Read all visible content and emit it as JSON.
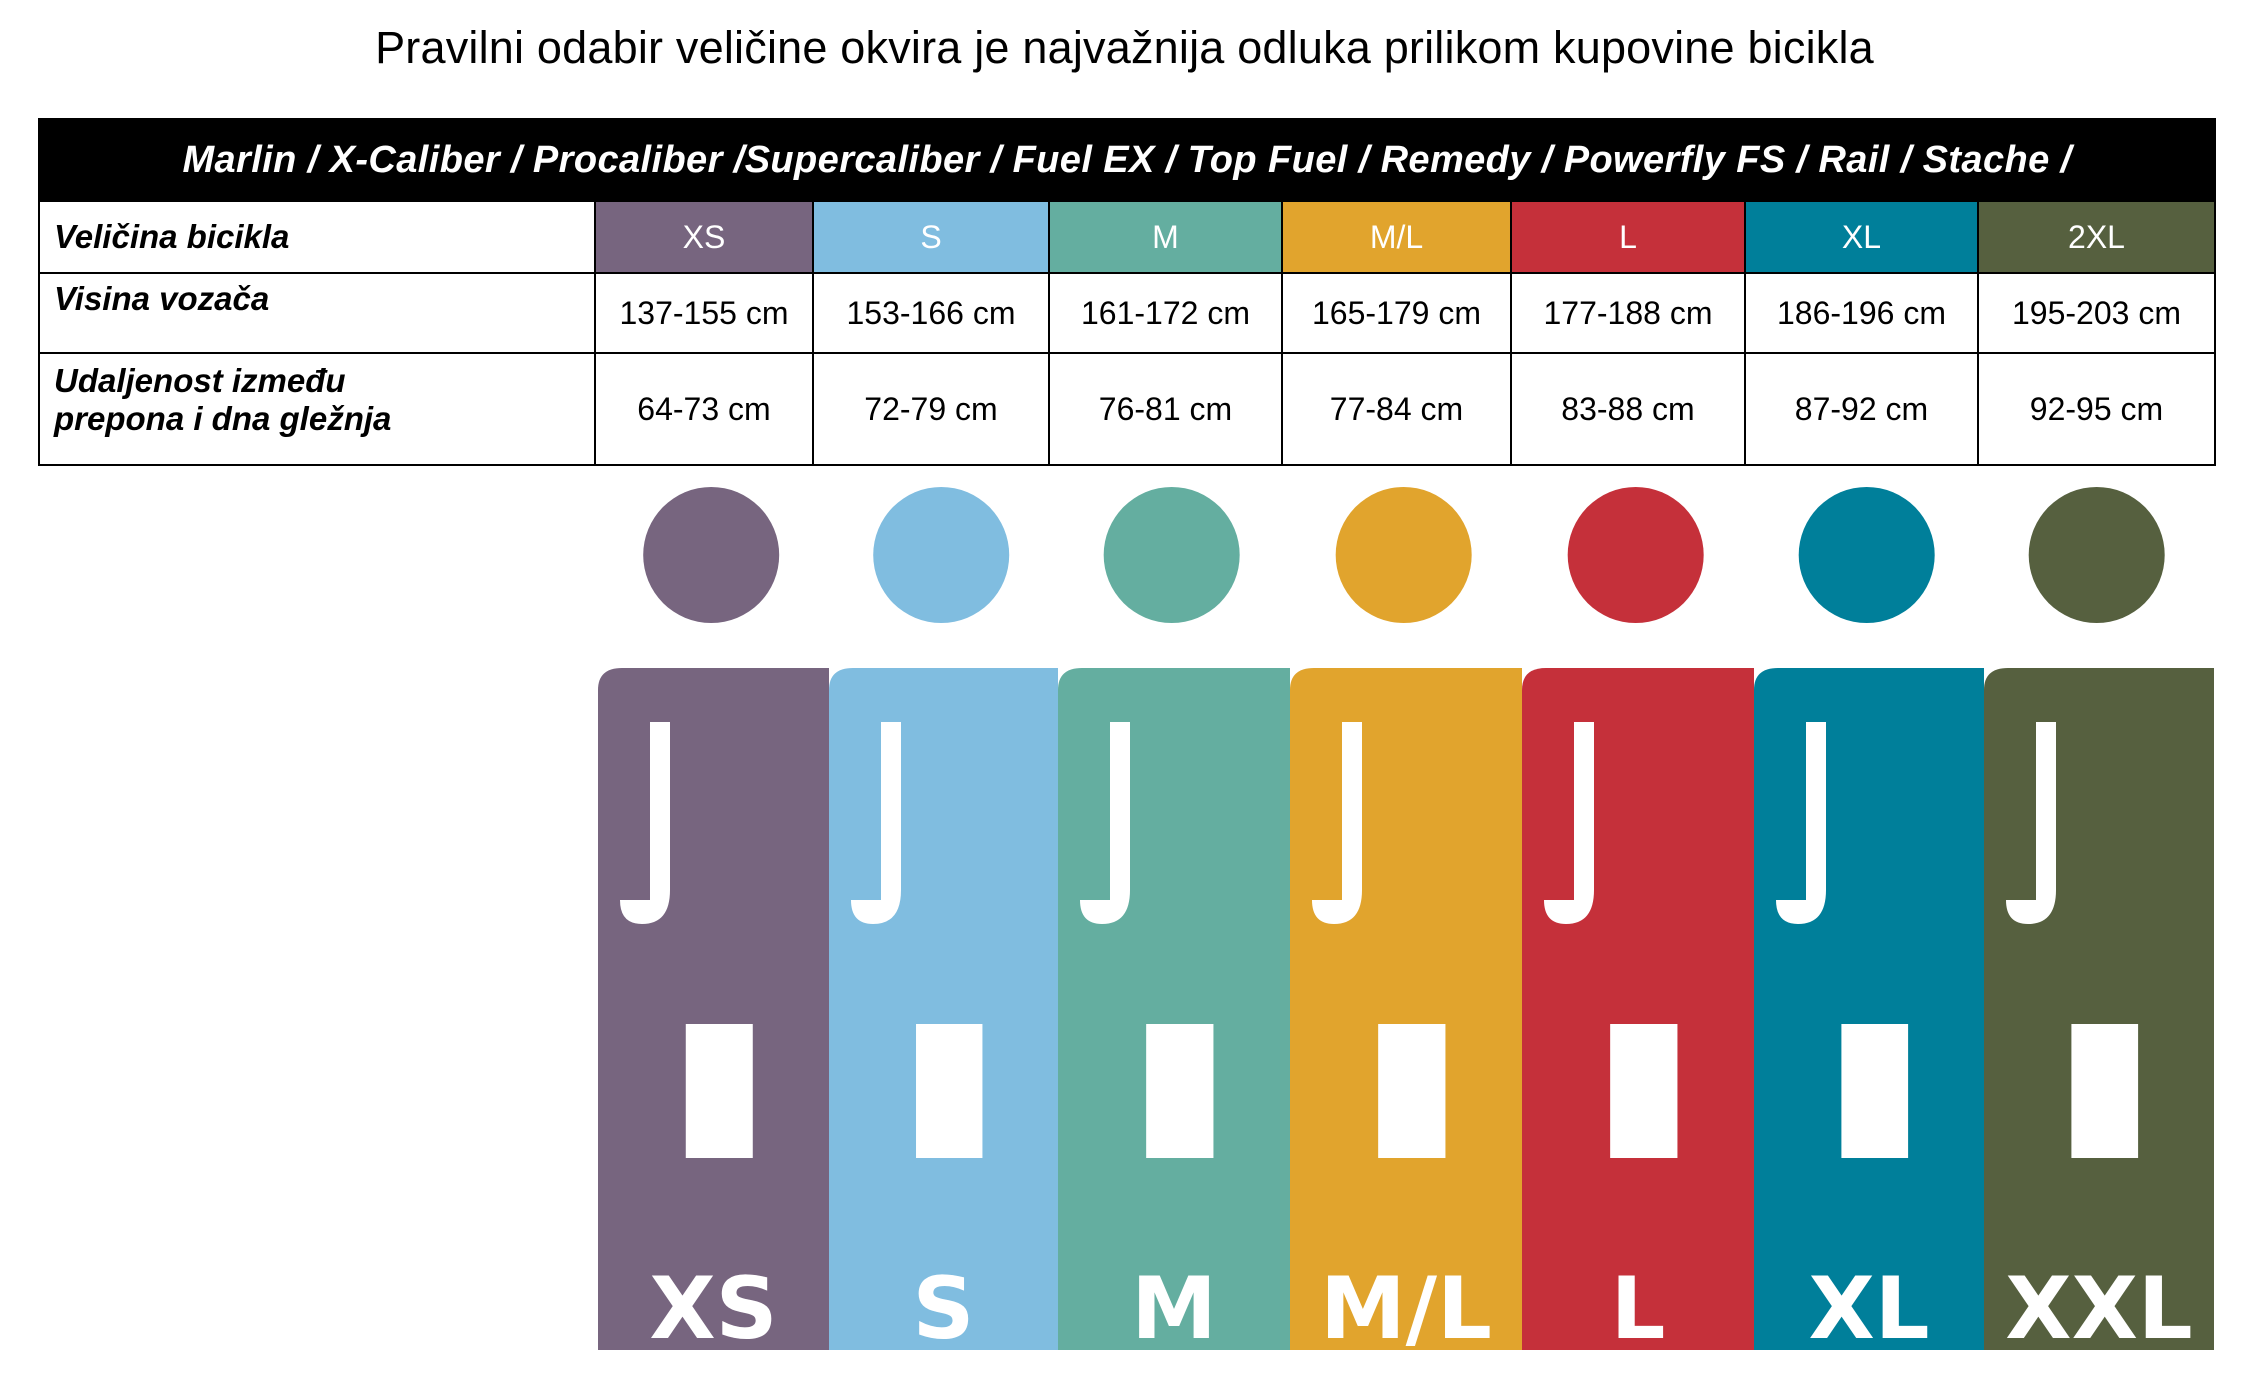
{
  "title": "Pravilni odabir veličine okvira je najvažnija odluka prilikom kupovine bicikla",
  "table": {
    "models_header": "Marlin / X-Caliber / Procaliber /Supercaliber / Fuel EX / Top Fuel / Remedy / Powerfly FS / Rail / Stache /",
    "row_labels": {
      "size": "Veličina bicikla",
      "rider_height": "Visina vozača",
      "inseam_line1": "Udaljenost između",
      "inseam_line2": "prepona i dna gležnja"
    },
    "columns": [
      {
        "size": "XS",
        "height": "137-155 cm",
        "inseam": "64-73 cm",
        "color": "#77657f"
      },
      {
        "size": "S",
        "height": "153-166 cm",
        "inseam": "72-79 cm",
        "color": "#80bde0"
      },
      {
        "size": "M",
        "height": "161-172 cm",
        "inseam": "76-81 cm",
        "color": "#64aea0"
      },
      {
        "size": "M/L",
        "height": "165-179 cm",
        "inseam": "77-84 cm",
        "color": "#e1a42d"
      },
      {
        "size": "L",
        "height": "177-188 cm",
        "inseam": "83-88 cm",
        "color": "#c5303a"
      },
      {
        "size": "XL",
        "height": "186-196 cm",
        "inseam": "87-92 cm",
        "color": "#007f9a"
      },
      {
        "size": "2XL",
        "height": "195-203 cm",
        "inseam": "92-95 cm",
        "color": "#56603f"
      }
    ]
  },
  "figures": {
    "captions": [
      "XS",
      "S",
      "M",
      "M/L",
      "L",
      "XL",
      "XXL"
    ]
  }
}
